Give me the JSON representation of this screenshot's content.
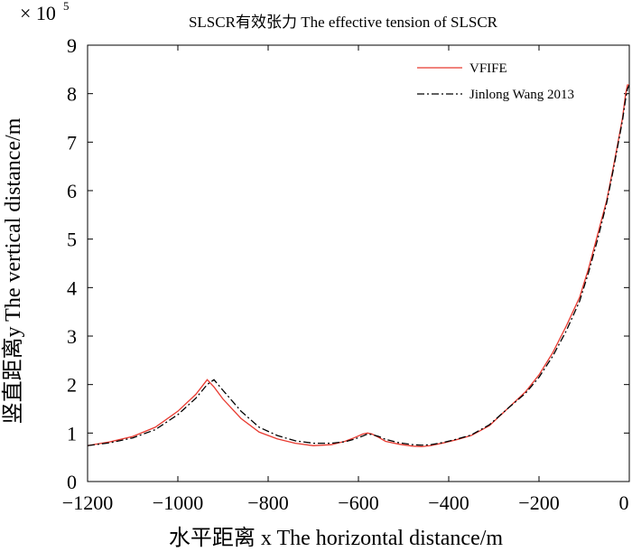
{
  "chart_data": {
    "type": "line",
    "title": "SLSCR有效张力 The effective tension of SLSCR",
    "xlabel": "水平距离 x The horizontal distance/m",
    "ylabel": "竖直距离y The vertical distance/m",
    "y_multiplier": "× 10",
    "y_multiplier_exp": "5",
    "xlim": [
      -1200,
      0
    ],
    "ylim": [
      0,
      9
    ],
    "x_ticks": [
      -1200,
      -1000,
      -800,
      -600,
      -400,
      -200,
      0
    ],
    "x_tick_labels": [
      "−1200",
      "−1000",
      "−800",
      "−600",
      "−400",
      "−200",
      "0"
    ],
    "y_ticks": [
      0,
      1,
      2,
      3,
      4,
      5,
      6,
      7,
      8,
      9
    ],
    "y_tick_labels": [
      "0",
      "1",
      "2",
      "3",
      "4",
      "5",
      "6",
      "7",
      "8",
      "9"
    ],
    "grid": false,
    "legend_position": "top-right",
    "series": [
      {
        "name": "VFIFE",
        "color": "#e8392f",
        "style": "solid",
        "x": [
          -1200,
          -1150,
          -1100,
          -1050,
          -1000,
          -960,
          -935,
          -920,
          -900,
          -860,
          -820,
          -780,
          -740,
          -700,
          -660,
          -630,
          -610,
          -590,
          -580,
          -570,
          -555,
          -540,
          -510,
          -480,
          -460,
          -440,
          -410,
          -380,
          -350,
          -310,
          -270,
          -230,
          -200,
          -170,
          -140,
          -110,
          -90,
          -70,
          -50,
          -35,
          -25,
          -15,
          -8,
          -4,
          0
        ],
        "y": [
          0.74,
          0.82,
          0.93,
          1.12,
          1.45,
          1.8,
          2.1,
          1.95,
          1.7,
          1.3,
          1.02,
          0.88,
          0.79,
          0.74,
          0.76,
          0.83,
          0.9,
          0.98,
          1.0,
          0.98,
          0.91,
          0.83,
          0.77,
          0.73,
          0.72,
          0.74,
          0.8,
          0.87,
          0.95,
          1.15,
          1.5,
          1.85,
          2.2,
          2.65,
          3.2,
          3.8,
          4.4,
          5.1,
          5.8,
          6.5,
          7.0,
          7.5,
          8.0,
          8.18,
          8.18
        ]
      },
      {
        "name": "Jinlong Wang 2013",
        "color": "#000000",
        "style": "dashdot",
        "x": [
          -1200,
          -1150,
          -1100,
          -1050,
          -1000,
          -960,
          -935,
          -920,
          -900,
          -860,
          -820,
          -780,
          -740,
          -700,
          -660,
          -630,
          -610,
          -590,
          -580,
          -570,
          -555,
          -540,
          -510,
          -480,
          -460,
          -440,
          -410,
          -380,
          -350,
          -310,
          -270,
          -230,
          -200,
          -170,
          -140,
          -110,
          -90,
          -70,
          -50,
          -35,
          -25,
          -15,
          -8,
          -4,
          0
        ],
        "y": [
          0.74,
          0.8,
          0.9,
          1.07,
          1.38,
          1.72,
          2.0,
          2.1,
          1.88,
          1.45,
          1.12,
          0.95,
          0.84,
          0.79,
          0.79,
          0.82,
          0.87,
          0.94,
          0.98,
          0.97,
          0.93,
          0.87,
          0.8,
          0.76,
          0.75,
          0.76,
          0.81,
          0.88,
          0.96,
          1.17,
          1.5,
          1.82,
          2.15,
          2.58,
          3.1,
          3.72,
          4.32,
          5.0,
          5.75,
          6.45,
          6.95,
          7.45,
          7.9,
          8.1,
          8.18
        ]
      }
    ]
  }
}
